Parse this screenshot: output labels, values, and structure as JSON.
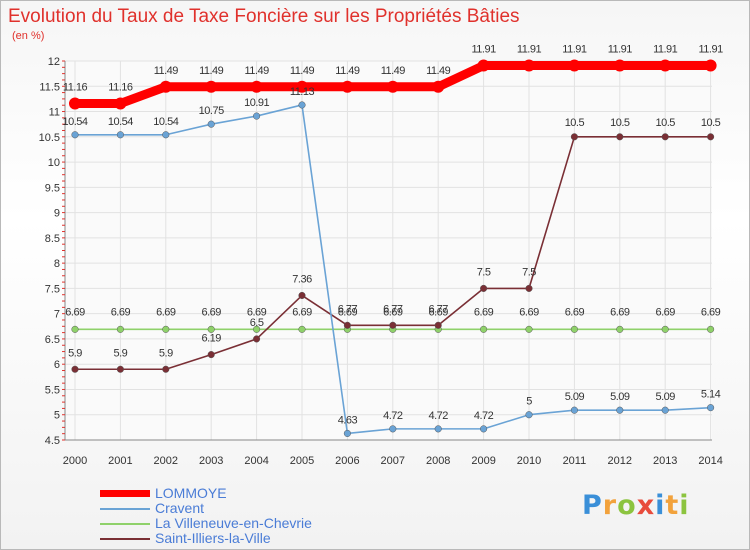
{
  "chart_data": {
    "type": "line",
    "title": "Evolution du Taux de Taxe Foncière sur les Propriétés Bâties",
    "subtitle": "(en %)",
    "xlabel": "",
    "ylabel": "(en %)",
    "categories": [
      "2000",
      "2001",
      "2002",
      "2003",
      "2004",
      "2005",
      "2006",
      "2007",
      "2008",
      "2009",
      "2010",
      "2011",
      "2012",
      "2013",
      "2014"
    ],
    "ylim": [
      4.5,
      12
    ],
    "yticks": [
      "4.5",
      "5",
      "5.5",
      "6",
      "6.5",
      "7",
      "7.5",
      "8",
      "8.5",
      "9",
      "9.5",
      "10",
      "10.5",
      "11",
      "11.5",
      "12"
    ],
    "series": [
      {
        "name": "LOMMOYE",
        "color": "#ff0000",
        "values": [
          11.16,
          11.16,
          11.49,
          11.49,
          11.49,
          11.49,
          11.49,
          11.49,
          11.49,
          11.91,
          11.91,
          11.91,
          11.91,
          11.91,
          11.91
        ],
        "labels": [
          "11.16",
          "11.16",
          "11.49",
          "11.49",
          "11.49",
          "11.49",
          "11.49",
          "11.49",
          "11.49",
          "11.91",
          "11.91",
          "11.91",
          "11.91",
          "11.91",
          "11.91"
        ]
      },
      {
        "name": "Cravent",
        "color": "#6aa3d5",
        "values": [
          10.54,
          10.54,
          10.54,
          10.75,
          10.91,
          11.13,
          4.63,
          4.72,
          4.72,
          4.72,
          5,
          5.09,
          5.09,
          5.09,
          5.14
        ],
        "labels": [
          "10.54",
          "10.54",
          "10.54",
          "10.75",
          "10.91",
          "11.13",
          "4.63",
          "4.72",
          "4.72",
          "4.72",
          "5",
          "5.09",
          "5.09",
          "5.09",
          "5.14"
        ]
      },
      {
        "name": "La Villeneuve-en-Chevrie",
        "color": "#8fd16a",
        "values": [
          6.69,
          6.69,
          6.69,
          6.69,
          6.69,
          6.69,
          6.69,
          6.69,
          6.69,
          6.69,
          6.69,
          6.69,
          6.69,
          6.69,
          6.69
        ],
        "labels": [
          "6.69",
          "6.69",
          "6.69",
          "6.69",
          "6.69",
          "6.69",
          "6.69",
          "6.69",
          "6.69",
          "6.69",
          "6.69",
          "6.69",
          "6.69",
          "6.69",
          "6.69"
        ]
      },
      {
        "name": "Saint-Illiers-la-Ville",
        "color": "#7a2f35",
        "values": [
          5.9,
          5.9,
          5.9,
          6.19,
          6.5,
          7.36,
          6.77,
          6.77,
          6.77,
          7.5,
          7.5,
          10.5,
          10.5,
          10.5,
          10.5
        ],
        "labels": [
          "5.9",
          "5.9",
          "5.9",
          "6.19",
          "6.5",
          "7.36",
          "6.77",
          "6.77",
          "6.77",
          "7.5",
          "7.5",
          "10.5",
          "10.5",
          "10.5",
          "10.5"
        ]
      }
    ],
    "legend": "bottom-left"
  },
  "logo": {
    "text": "Proxiti",
    "letters": [
      "P",
      "r",
      "o",
      "x",
      "i",
      "t",
      "i"
    ]
  }
}
